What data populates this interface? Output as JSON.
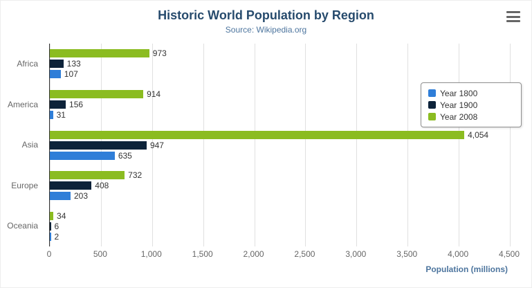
{
  "header": {
    "title": "Historic World Population by Region",
    "subtitle": "Source: Wikipedia.org"
  },
  "icons": {
    "export_menu": "hamburger-icon"
  },
  "colors": {
    "title": "#274b6d",
    "subtitle": "#4d759e",
    "axis_title": "#4d759e",
    "series_1800": "#2f7ed8",
    "series_1900": "#0d233a",
    "series_2008": "#8bbc21"
  },
  "chart_data": {
    "type": "bar",
    "title": "Historic World Population by Region",
    "subtitle": "Source: Wikipedia.org",
    "categories": [
      "Africa",
      "America",
      "Asia",
      "Europe",
      "Oceania"
    ],
    "series": [
      {
        "name": "Year 1800",
        "color": "#2f7ed8",
        "values": [
          107,
          31,
          635,
          203,
          2
        ]
      },
      {
        "name": "Year 1900",
        "color": "#0d233a",
        "values": [
          133,
          156,
          947,
          408,
          6
        ]
      },
      {
        "name": "Year 2008",
        "color": "#8bbc21",
        "values": [
          973,
          914,
          4054,
          732,
          34
        ]
      }
    ],
    "bar_order_top_to_bottom": [
      "Year 2008",
      "Year 1900",
      "Year 1800"
    ],
    "xlabel": "Population (millions)",
    "xlim": [
      0,
      4500
    ],
    "x_ticks": [
      0,
      500,
      1000,
      1500,
      2000,
      2500,
      3000,
      3500,
      4000,
      4500
    ],
    "grid": true,
    "legend_position": "right"
  }
}
